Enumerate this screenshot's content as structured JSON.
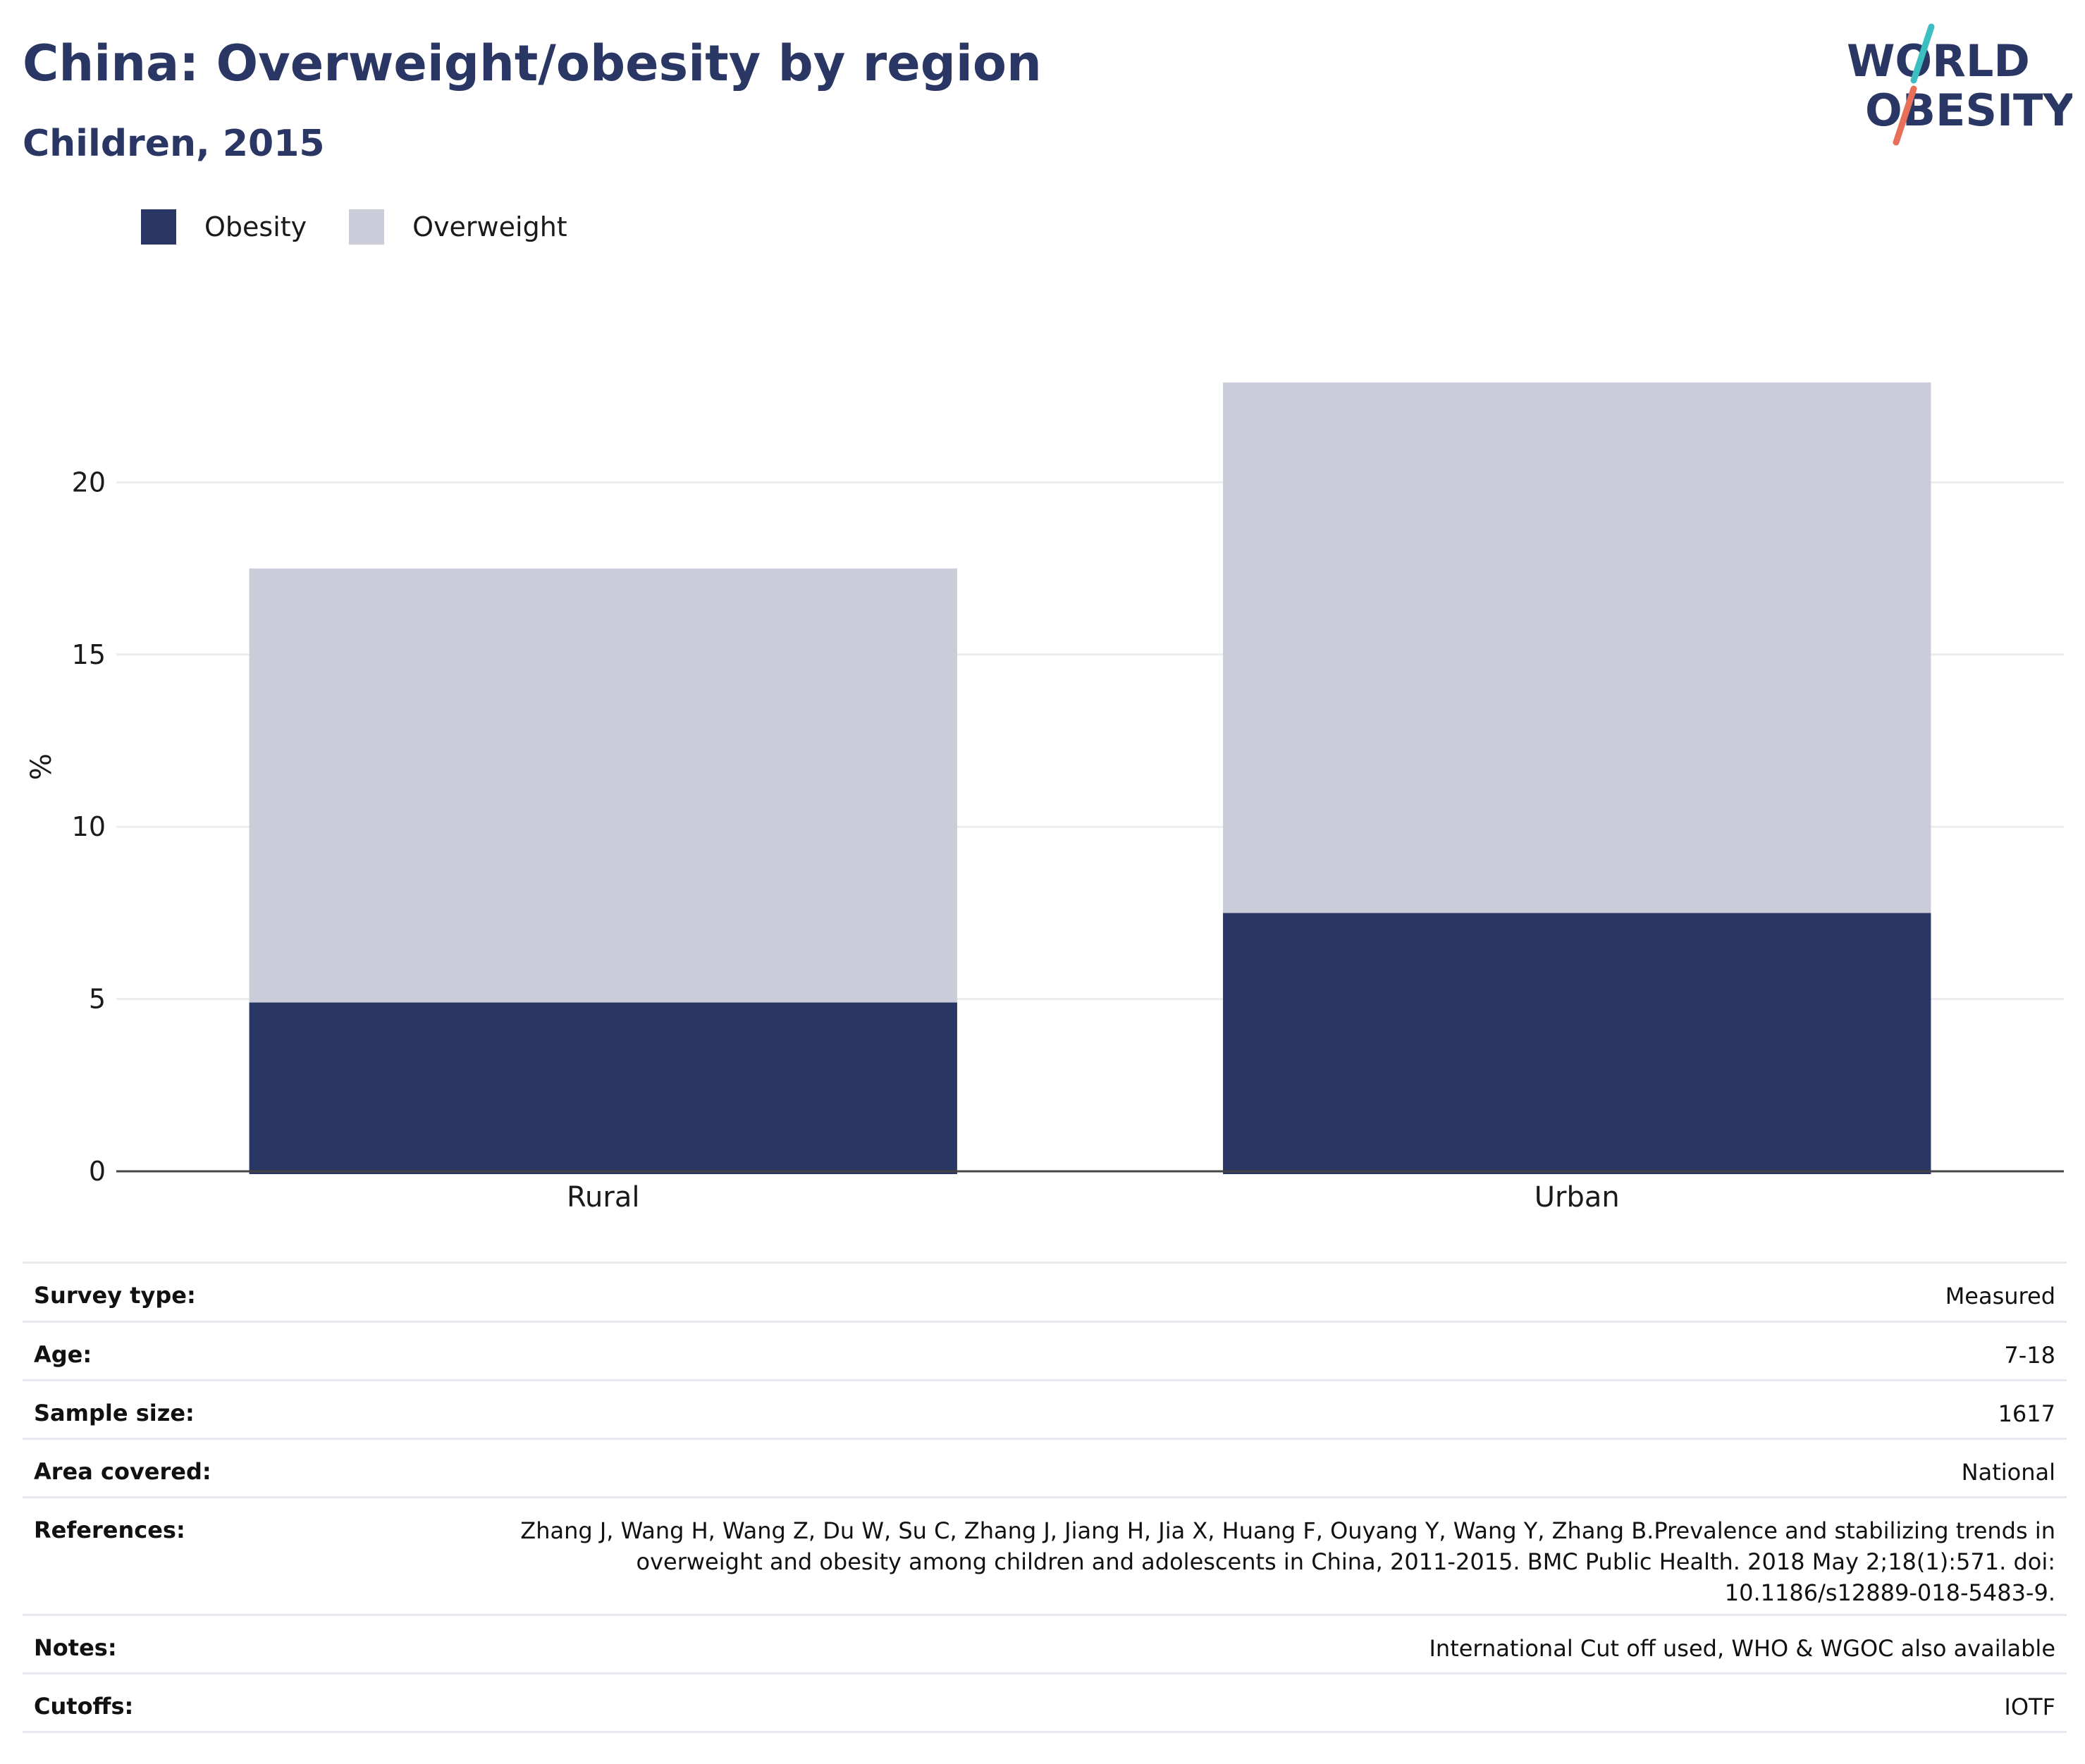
{
  "header": {
    "title": "China: Overweight/obesity by region",
    "subtitle": "Children, 2015"
  },
  "logo": {
    "line1": "WORLD",
    "line2": "OBESITY",
    "colors": {
      "text": "#2a3663",
      "slash_top": "#3bbfc1",
      "slash_bottom": "#e8705a"
    }
  },
  "legend": [
    {
      "label": "Obesity",
      "color": "#2a3663"
    },
    {
      "label": "Overweight",
      "color": "#cacdd9"
    }
  ],
  "chart_data": {
    "type": "bar",
    "stacked": true,
    "categories": [
      "Rural",
      "Urban"
    ],
    "series": [
      {
        "name": "Obesity",
        "color": "#2a3663",
        "values": [
          4.9,
          7.5
        ]
      },
      {
        "name": "Overweight",
        "color": "#cacdd9",
        "values": [
          12.6,
          15.4
        ]
      }
    ],
    "ylabel": "%",
    "ylim": [
      0,
      25
    ],
    "yticks": [
      0,
      5,
      10,
      15,
      20
    ],
    "grid": true,
    "legend_position": "top-left"
  },
  "meta": [
    {
      "label": "Survey type:",
      "value": "Measured"
    },
    {
      "label": "Age:",
      "value": "7-18"
    },
    {
      "label": "Sample size:",
      "value": "1617"
    },
    {
      "label": "Area covered:",
      "value": "National"
    },
    {
      "label": "References:",
      "value": "Zhang J, Wang H, Wang Z, Du W, Su C, Zhang J, Jiang H, Jia X, Huang F, Ouyang Y, Wang Y, Zhang B.Prevalence and stabilizing trends in overweight and obesity among children and adolescents in China, 2011-2015. BMC Public Health. 2018 May 2;18(1):571. doi: 10.1186/s12889-018-5483-9."
    },
    {
      "label": "Notes:",
      "value": "International Cut off used, WHO & WGOC also available"
    },
    {
      "label": "Cutoffs:",
      "value": "IOTF"
    }
  ]
}
